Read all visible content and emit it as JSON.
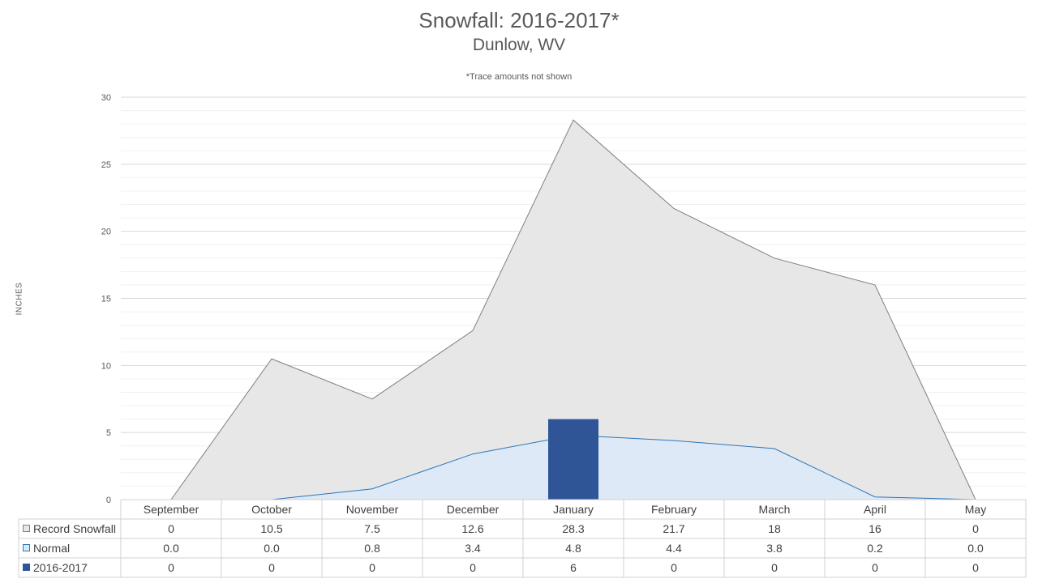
{
  "chart_data": {
    "type": "area",
    "title": "Snowfall: 2016-2017*",
    "subtitle": "Dunlow, WV",
    "note": "*Trace amounts not shown",
    "ylabel": "INCHES",
    "ylim": [
      0,
      30
    ],
    "yticks": [
      0,
      5,
      10,
      15,
      20,
      25,
      30
    ],
    "grid": true,
    "legend": "data-table",
    "categories": [
      "September",
      "October",
      "November",
      "December",
      "January",
      "February",
      "March",
      "April",
      "May"
    ],
    "series": [
      {
        "name": "Record Snowfall",
        "type": "area",
        "color": "#e7e7e7",
        "line_color": "#7f7f7f",
        "values": [
          0,
          10.5,
          7.5,
          12.6,
          28.3,
          21.7,
          18,
          16,
          0
        ],
        "display": [
          "0",
          "10.5",
          "7.5",
          "12.6",
          "28.3",
          "21.7",
          "18",
          "16",
          "0"
        ]
      },
      {
        "name": "Normal",
        "type": "area",
        "color": "#dde9f6",
        "line_color": "#2e75b6",
        "values": [
          0.0,
          0.0,
          0.8,
          3.4,
          4.8,
          4.4,
          3.8,
          0.2,
          0.0
        ],
        "display": [
          "0.0",
          "0.0",
          "0.8",
          "3.4",
          "4.8",
          "4.4",
          "3.8",
          "0.2",
          "0.0"
        ]
      },
      {
        "name": "2016-2017",
        "type": "bar",
        "color": "#2f5597",
        "values": [
          0,
          0,
          0,
          0,
          6,
          0,
          0,
          0,
          0
        ],
        "display": [
          "0",
          "0",
          "0",
          "0",
          "6",
          "0",
          "0",
          "0",
          "0"
        ]
      }
    ]
  }
}
